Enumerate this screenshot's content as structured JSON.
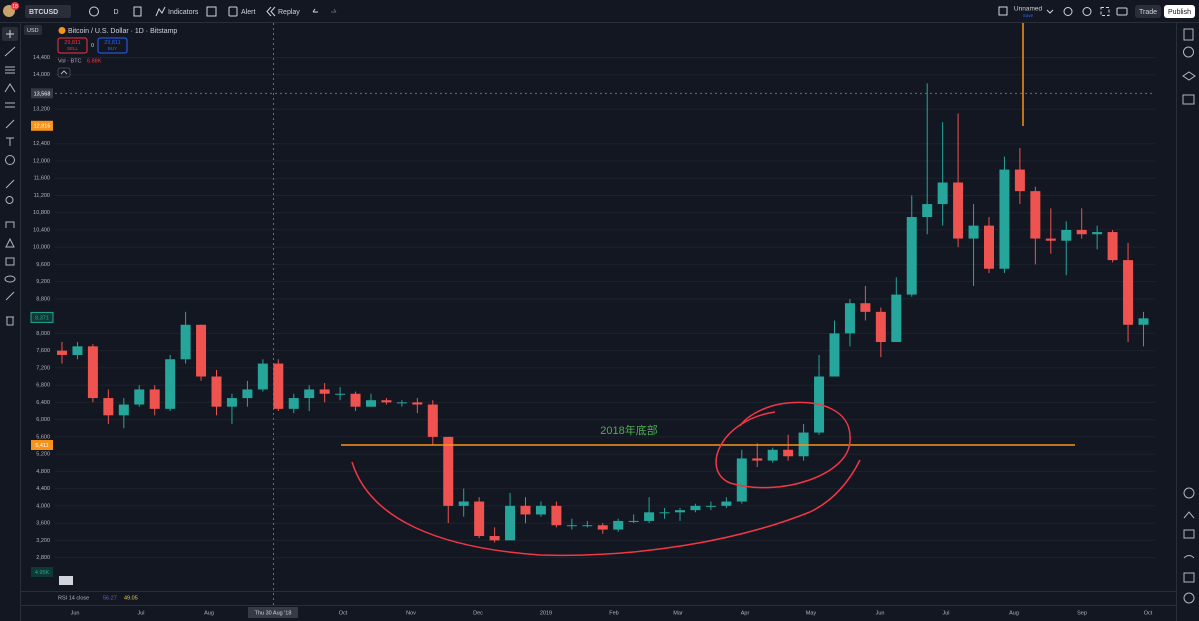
{
  "toolbar": {
    "badge": "18",
    "symbol": "BTCUSD",
    "interval": "D",
    "indicators": "Indicators",
    "alert": "Alert",
    "replay": "Replay",
    "layout_name": "Unnamed",
    "save": "Save",
    "trade": "Trade",
    "publish": "Publish"
  },
  "legend": {
    "currency": "USD",
    "title": "Bitcoin / U.S. Dollar · 1D · Bitstamp",
    "sell_price": "29,811",
    "sell": "SELL",
    "spread": "0",
    "buy_price": "29,811",
    "buy": "BUY",
    "volume_name": "Vol · BTC",
    "volume_value": "6.88K"
  },
  "chart_data": {
    "type": "candlestick",
    "up_color": "#26a69a",
    "down_color": "#ef5350",
    "open": [
      7600,
      7500,
      7700,
      6500,
      6100,
      6350,
      6700,
      6250,
      7400,
      8200,
      7000,
      6300,
      6500,
      6700,
      7300,
      6250,
      6500,
      6700,
      6600,
      6600,
      6300,
      6450,
      6400,
      6400,
      6350,
      5600,
      4000,
      4100,
      3300,
      3200,
      4000,
      3800,
      4000,
      3550,
      3550,
      3550,
      3450,
      3650,
      3650,
      3850,
      3850,
      3900,
      4000,
      4000,
      4100,
      5100,
      5050,
      5300,
      5150,
      5700,
      7000,
      8000,
      8700,
      8500,
      7800,
      8900,
      10700,
      11000,
      11500,
      10200,
      10500,
      9500,
      11800,
      11300,
      10200,
      10150,
      10400,
      10300,
      10350,
      9700,
      8200
    ],
    "high": [
      7800,
      7800,
      7750,
      6700,
      6500,
      6800,
      6800,
      7500,
      8500,
      8200,
      7150,
      6600,
      6900,
      7400,
      7400,
      6600,
      6800,
      6850,
      6750,
      6650,
      6600,
      6500,
      6450,
      6500,
      6450,
      5600,
      4400,
      4200,
      3500,
      4300,
      4200,
      4100,
      4100,
      3700,
      3650,
      3600,
      3700,
      3800,
      4200,
      3950,
      3950,
      4050,
      4100,
      4200,
      5300,
      5450,
      5350,
      5650,
      5900,
      7500,
      8300,
      8800,
      9100,
      8600,
      9300,
      11200,
      13800,
      12900,
      13100,
      11000,
      10700,
      12100,
      12300,
      11400,
      10900,
      10600,
      10900,
      10500,
      10400,
      10100,
      8500
    ],
    "low": [
      7300,
      7400,
      6400,
      5900,
      5800,
      6300,
      6100,
      6200,
      7300,
      6900,
      6100,
      5900,
      6300,
      6650,
      6200,
      6150,
      6200,
      6400,
      6450,
      6200,
      6300,
      6350,
      6300,
      6150,
      5400,
      3600,
      3750,
      3250,
      3150,
      3200,
      3600,
      3750,
      3500,
      3450,
      3500,
      3350,
      3400,
      3600,
      3600,
      3700,
      3650,
      3850,
      3900,
      3950,
      4050,
      4900,
      5000,
      5050,
      5050,
      5650,
      7000,
      7700,
      8300,
      7450,
      7800,
      8850,
      10300,
      10500,
      10000,
      9100,
      9400,
      9400,
      11000,
      9600,
      9850,
      9350,
      10200,
      9950,
      9650,
      7800,
      7700
    ],
    "close": [
      7500,
      7700,
      6500,
      6100,
      6350,
      6700,
      6250,
      7400,
      8200,
      7000,
      6300,
      6500,
      6700,
      7300,
      6250,
      6500,
      6700,
      6600,
      6600,
      6300,
      6450,
      6400,
      6400,
      6350,
      5600,
      4000,
      4100,
      3300,
      3200,
      4000,
      3800,
      4000,
      3550,
      3550,
      3550,
      3450,
      3650,
      3650,
      3850,
      3850,
      3900,
      4000,
      4000,
      4100,
      5100,
      5050,
      5300,
      5150,
      5700,
      7000,
      8000,
      8700,
      8500,
      7800,
      8900,
      10700,
      11000,
      11500,
      10200,
      10500,
      9500,
      11800,
      11300,
      10200,
      10150,
      10400,
      10300,
      10350,
      9700,
      8200,
      8350
    ],
    "ylim": [
      1700,
      15200
    ],
    "yticks": [
      {
        "value": 2800,
        "label": "2,800"
      },
      {
        "value": 3200,
        "label": "3,200"
      },
      {
        "value": 3600,
        "label": "3,600"
      },
      {
        "value": 4000,
        "label": "4,000"
      },
      {
        "value": 4400,
        "label": "4,400"
      },
      {
        "value": 4800,
        "label": "4,800"
      },
      {
        "value": 5200,
        "label": "5,200"
      },
      {
        "value": 5600,
        "label": "5,600"
      },
      {
        "value": 6000,
        "label": "6,000"
      },
      {
        "value": 6400,
        "label": "6,400"
      },
      {
        "value": 6800,
        "label": "6,800"
      },
      {
        "value": 7200,
        "label": "7,200"
      },
      {
        "value": 7600,
        "label": "7,600"
      },
      {
        "value": 8000,
        "label": "8,000"
      },
      {
        "value": 8800,
        "label": "8,800"
      },
      {
        "value": 9200,
        "label": "9,200"
      },
      {
        "value": 9600,
        "label": "9,600"
      },
      {
        "value": 10000,
        "label": "10,000"
      },
      {
        "value": 10400,
        "label": "10,400"
      },
      {
        "value": 10800,
        "label": "10,800"
      },
      {
        "value": 11200,
        "label": "11,200"
      },
      {
        "value": 11600,
        "label": "11,600"
      },
      {
        "value": 12000,
        "label": "12,000"
      },
      {
        "value": 12400,
        "label": "12,400"
      },
      {
        "value": 13200,
        "label": "13,200"
      },
      {
        "value": 14000,
        "label": "14,000"
      },
      {
        "value": 14400,
        "label": "14,400"
      }
    ],
    "grid": true,
    "price_markers": [
      {
        "value": 13568,
        "label": "13,568",
        "color": "#363a45"
      },
      {
        "value": 12816,
        "label": "12,816",
        "color": "#f7931a"
      },
      {
        "value": 8371,
        "label": "8,371",
        "color": "#0e3a33"
      },
      {
        "value": 5411,
        "label": "5,411",
        "color": "#f7931a"
      }
    ],
    "volume_label": "4.95K",
    "time_labels": [
      "Jun",
      "Jul",
      "Aug",
      "Oct",
      "Nov",
      "Dec",
      "2019",
      "Feb",
      "Mar",
      "Apr",
      "May",
      "Jun",
      "Jul",
      "Aug",
      "Sep",
      "Oct"
    ],
    "crosshair_time": "Thu 30 Aug '18",
    "annotation": "2018年底部"
  },
  "rsi": {
    "name": "RSI 14 close",
    "value1": "56.27",
    "value2": "49.05"
  }
}
